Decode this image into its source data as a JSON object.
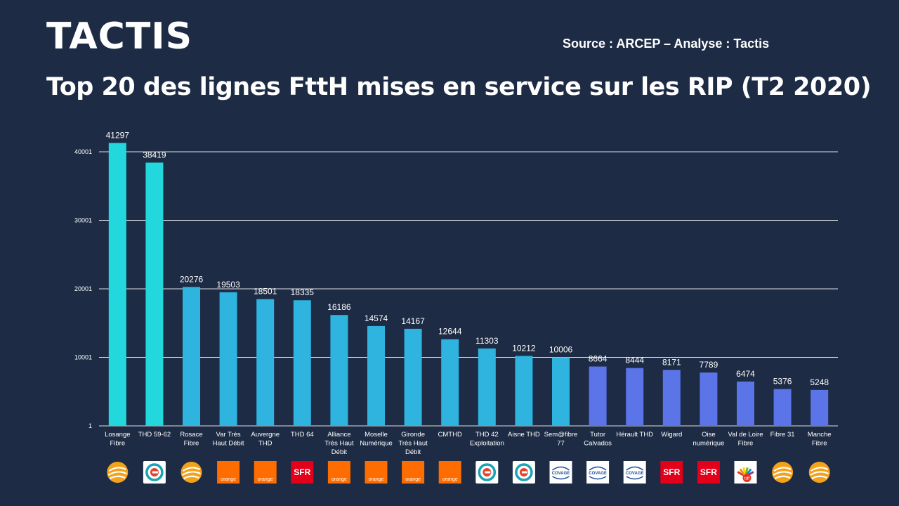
{
  "header": {
    "logo": "TACTIS",
    "source": "Source : ARCEP – Analyse : Tactis",
    "title": "Top 20 des lignes FttH mises en service sur les RIP (T2 2020)"
  },
  "colors": {
    "background": "#1d2b45",
    "bar_cyan": "#22d8dc",
    "bar_blue": "#2eb4df",
    "bar_violet": "#5b74e8",
    "grid": "#ffffff"
  },
  "chart_data": {
    "type": "bar",
    "title": "Top 20 des lignes FttH mises en service sur les RIP (T2 2020)",
    "xlabel": "",
    "ylabel": "",
    "ylim": [
      1,
      41297
    ],
    "yticks": [
      1,
      10001,
      20001,
      30001,
      40001
    ],
    "grid": true,
    "categories": [
      [
        "Losange",
        "Fibre"
      ],
      [
        "THD 59-62"
      ],
      [
        "Rosace",
        "Fibre"
      ],
      [
        "Var Très",
        "Haut Débit"
      ],
      [
        "Auvergne",
        "THD"
      ],
      [
        "THD 64"
      ],
      [
        "Alliance",
        "Très Haut",
        "Débit"
      ],
      [
        "Moselle",
        "Numérique"
      ],
      [
        "Gironde",
        "Très Haut",
        "Débit"
      ],
      [
        "CMTHD"
      ],
      [
        "THD 42",
        "Exploitation"
      ],
      [
        "Aisne THD"
      ],
      [
        "Sem@fibre",
        "77"
      ],
      [
        "Tutor",
        "Calvados"
      ],
      [
        "Hérault THD"
      ],
      [
        "Wigard"
      ],
      [
        "Oise",
        "numérique"
      ],
      [
        "Val de Loire",
        "Fibre"
      ],
      [
        "Fibre 31"
      ],
      [
        "Manche",
        "Fibre"
      ]
    ],
    "values": [
      41297,
      38419,
      20276,
      19503,
      18501,
      18335,
      16186,
      14574,
      14167,
      12644,
      11303,
      10212,
      10006,
      8664,
      8444,
      8171,
      7789,
      6474,
      5376,
      5248
    ],
    "bar_colors": [
      "cyan",
      "cyan",
      "blue",
      "blue",
      "blue",
      "blue",
      "blue",
      "blue",
      "blue",
      "blue",
      "blue",
      "blue",
      "blue",
      "violet",
      "violet",
      "violet",
      "violet",
      "violet",
      "violet",
      "violet"
    ],
    "operators": [
      "altitude",
      "covage-e",
      "altitude",
      "orange",
      "orange",
      "sfr",
      "orange",
      "orange",
      "orange",
      "orange",
      "covage-e",
      "covage-e",
      "covage",
      "covage",
      "covage",
      "sfr",
      "sfr",
      "tdf",
      "altitude",
      "altitude"
    ]
  },
  "operator_labels": {
    "orange": "orange",
    "sfr": "SFR",
    "covage": "COVAGE",
    "tdf": "tdf"
  }
}
